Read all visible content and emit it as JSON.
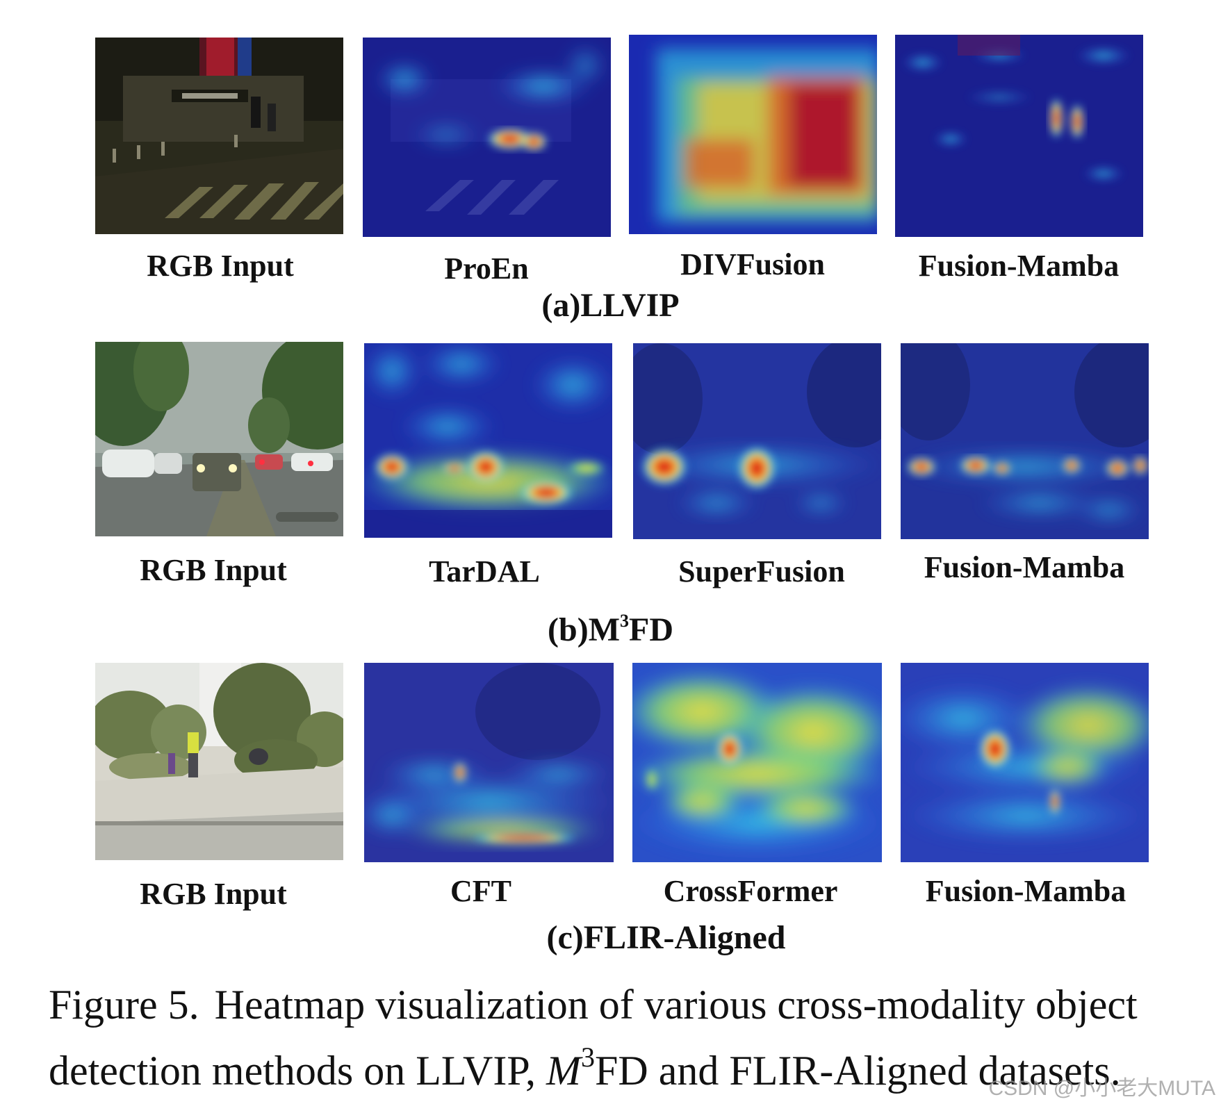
{
  "figure": {
    "rows": [
      {
        "subcaption_prefix": "(a)",
        "subcaption_name": "LLVIP",
        "subcaption_sup": "",
        "subcaption_suffix": "",
        "panels": [
          {
            "label": "RGB Input",
            "kind": "rgb-night-crosswalk"
          },
          {
            "label": "ProEn",
            "kind": "heatmap"
          },
          {
            "label": "DIVFusion",
            "kind": "heatmap"
          },
          {
            "label": "Fusion-Mamba",
            "kind": "heatmap"
          }
        ]
      },
      {
        "subcaption_prefix": "(b)",
        "subcaption_name": "M",
        "subcaption_sup": "3",
        "subcaption_suffix": "FD",
        "panels": [
          {
            "label": "RGB Input",
            "kind": "rgb-foggy-street"
          },
          {
            "label": "TarDAL",
            "kind": "heatmap"
          },
          {
            "label": "SuperFusion",
            "kind": "heatmap"
          },
          {
            "label": "Fusion-Mamba",
            "kind": "heatmap"
          }
        ]
      },
      {
        "subcaption_prefix": "(c)",
        "subcaption_name": "FLIR-Aligned",
        "subcaption_sup": "",
        "subcaption_suffix": "",
        "panels": [
          {
            "label": "RGB Input",
            "kind": "rgb-daytime-sidewalk"
          },
          {
            "label": "CFT",
            "kind": "heatmap"
          },
          {
            "label": "CrossFormer",
            "kind": "heatmap"
          },
          {
            "label": "Fusion-Mamba",
            "kind": "heatmap"
          }
        ]
      }
    ],
    "caption": {
      "number": "Figure 5.",
      "text_before_math": "Heatmap visualization of various cross-modality object detection methods on LLVIP, ",
      "math_base": "M",
      "math_sup": "3",
      "text_after_math": "FD and FLIR-Aligned datasets."
    }
  },
  "watermark": "CSDN @小小老大MUTA",
  "colors": {
    "heat_low": "#1a1f8f",
    "heat_mid": "#2fd0e8",
    "heat_warm": "#f3e63a",
    "heat_high": "#d4201c"
  }
}
